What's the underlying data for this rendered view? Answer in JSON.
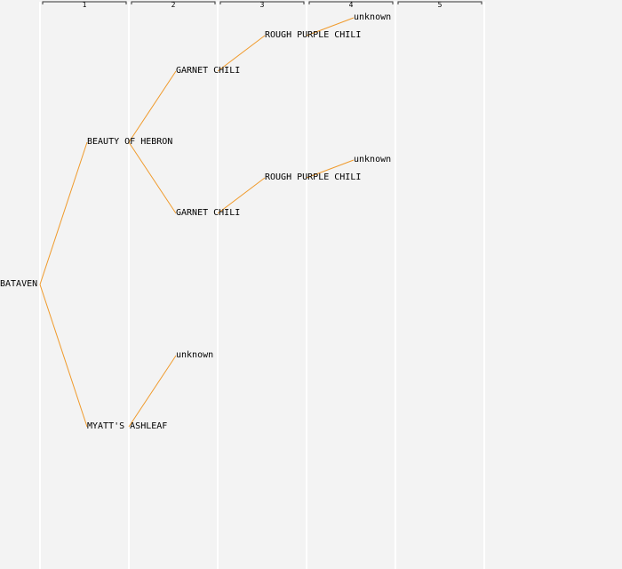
{
  "generations": [
    "1",
    "2",
    "3",
    "4",
    "5"
  ],
  "colors": {
    "background": "#f3f3f3",
    "column_divider": "#ffffff",
    "connector": "#f09a2a",
    "header_bracket": "#333333",
    "text": "#000000"
  },
  "tree": {
    "label": "BATAVEN",
    "children": [
      {
        "label": "BEAUTY OF HEBRON",
        "children": [
          {
            "label": "GARNET CHILI",
            "children": [
              {
                "label": "ROUGH PURPLE CHILI",
                "children": [
                  {
                    "label": "unknown"
                  }
                ]
              }
            ]
          },
          {
            "label": "GARNET CHILI",
            "children": [
              {
                "label": "ROUGH PURPLE CHILI",
                "children": [
                  {
                    "label": "unknown"
                  }
                ]
              }
            ]
          }
        ]
      },
      {
        "label": "MYATT'S ASHLEAF",
        "children": [
          {
            "label": "unknown"
          }
        ]
      }
    ]
  }
}
